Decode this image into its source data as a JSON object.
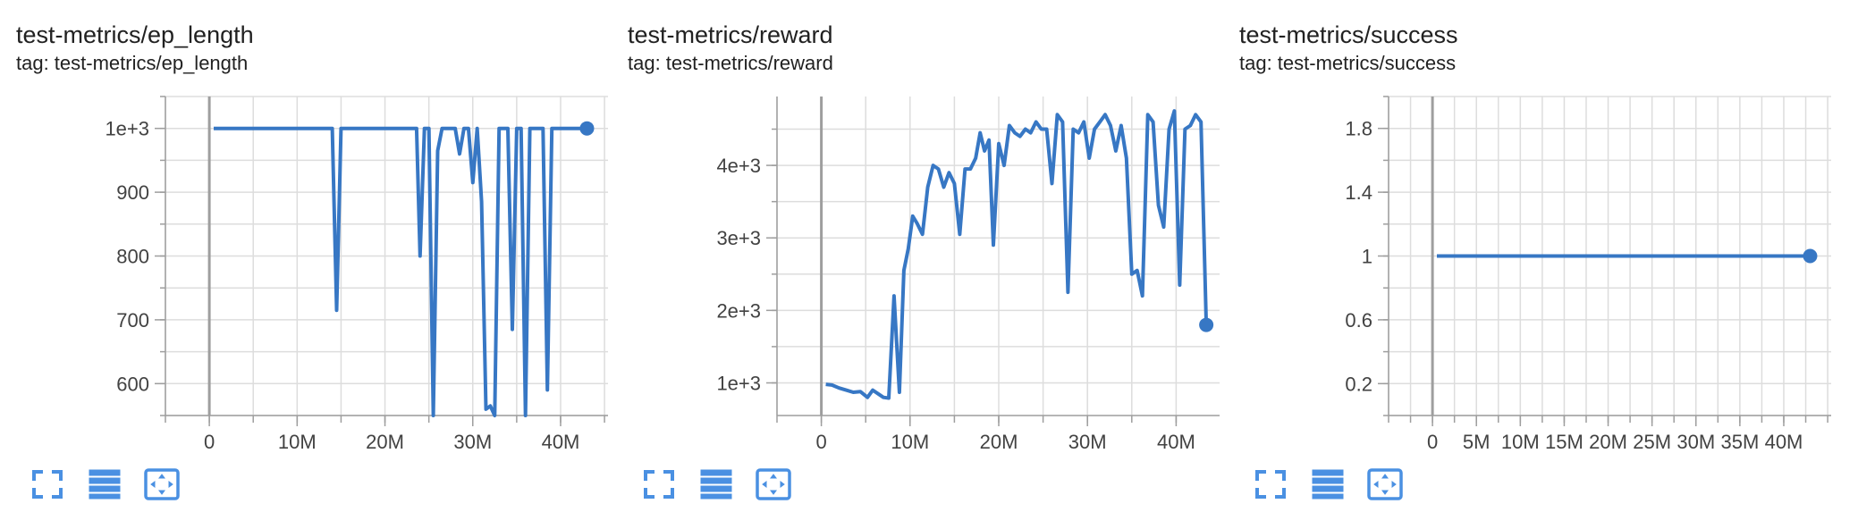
{
  "theme": {
    "line_color": "#3777c4",
    "grid_color": "#dddddd",
    "axis_color": "#9e9e9e",
    "zero_line_color": "#9e9e9e",
    "icon_color": "#4a90e2"
  },
  "toolbar": {
    "icons": [
      "fullscreen-icon",
      "data-table-icon",
      "fit-domain-icon"
    ]
  },
  "cards": [
    {
      "title": "test-metrics/ep_length",
      "tag": "tag: test-metrics/ep_length"
    },
    {
      "title": "test-metrics/reward",
      "tag": "tag: test-metrics/reward"
    },
    {
      "title": "test-metrics/success",
      "tag": "tag: test-metrics/success"
    }
  ],
  "chart_data": [
    {
      "type": "line",
      "title": "test-metrics/ep_length",
      "xlabel": "",
      "ylabel": "",
      "xlim": [
        -5000000,
        45500000
      ],
      "ylim": [
        550,
        1050
      ],
      "grid": true,
      "x_ticks": [
        0,
        10000000,
        20000000,
        30000000,
        40000000
      ],
      "x_tick_labels": [
        "0",
        "10M",
        "20M",
        "30M",
        "40M"
      ],
      "y_ticks": [
        600,
        700,
        800,
        900,
        1000
      ],
      "y_tick_labels": [
        "600",
        "700",
        "800",
        "900",
        "1e+3"
      ],
      "series": [
        {
          "x": [
            500000,
            14000000,
            14500000,
            15000000,
            23600000,
            24000000,
            24500000,
            25000000,
            25500000,
            26000000,
            26500000,
            27000000,
            28000000,
            28500000,
            29000000,
            29500000,
            30000000,
            30500000,
            31000000,
            31500000,
            32000000,
            32500000,
            33000000,
            34000000,
            34500000,
            35000000,
            35500000,
            36000000,
            36500000,
            38000000,
            38500000,
            39000000,
            43000000
          ],
          "y": [
            1000,
            1000,
            715,
            1000,
            1000,
            800,
            1000,
            1000,
            550,
            965,
            1000,
            1000,
            1000,
            960,
            1000,
            1000,
            915,
            1000,
            885,
            560,
            565,
            550,
            1000,
            1000,
            685,
            1000,
            1000,
            550,
            1000,
            1000,
            590,
            1000,
            1000
          ]
        }
      ]
    },
    {
      "type": "line",
      "title": "test-metrics/reward",
      "xlabel": "",
      "ylabel": "",
      "xlim": [
        -5000000,
        45000000
      ],
      "ylim": [
        550,
        4950
      ],
      "grid": true,
      "x_ticks": [
        0,
        10000000,
        20000000,
        30000000,
        40000000
      ],
      "x_tick_labels": [
        "0",
        "10M",
        "20M",
        "30M",
        "40M"
      ],
      "y_ticks": [
        1000,
        2000,
        3000,
        4000
      ],
      "y_tick_labels": [
        "1e+3",
        "2e+3",
        "3e+3",
        "4e+3"
      ],
      "series": [
        {
          "x": [
            500000,
            1200000,
            2000000,
            2800000,
            3600000,
            4400000,
            5200000,
            5800000,
            6400000,
            7000000,
            7600000,
            8200000,
            8800000,
            9300000,
            9800000,
            10300000,
            10800000,
            11400000,
            12000000,
            12600000,
            13200000,
            13800000,
            14400000,
            15000000,
            15600000,
            16200000,
            16800000,
            17400000,
            17900000,
            18400000,
            18900000,
            19400000,
            20000000,
            20600000,
            21200000,
            21800000,
            22400000,
            23000000,
            23600000,
            24200000,
            24800000,
            25400000,
            26000000,
            26600000,
            27200000,
            27800000,
            28400000,
            29000000,
            29600000,
            30200000,
            30800000,
            31400000,
            32000000,
            32600000,
            33200000,
            33800000,
            34400000,
            35000000,
            35600000,
            36200000,
            36800000,
            37400000,
            38000000,
            38600000,
            39200000,
            39800000,
            40400000,
            41000000,
            41600000,
            42200000,
            42800000,
            43400000
          ],
          "y": [
            980,
            970,
            930,
            900,
            870,
            880,
            800,
            900,
            850,
            800,
            790,
            2200,
            870,
            2550,
            2850,
            3300,
            3200,
            3050,
            3700,
            4000,
            3950,
            3700,
            3900,
            3750,
            3050,
            3950,
            3950,
            4100,
            4450,
            4200,
            4350,
            2900,
            4300,
            4000,
            4550,
            4450,
            4400,
            4500,
            4450,
            4600,
            4500,
            4500,
            3750,
            4700,
            4600,
            2250,
            4500,
            4450,
            4600,
            4100,
            4500,
            4600,
            4700,
            4550,
            4200,
            4550,
            4100,
            2500,
            2550,
            2200,
            4700,
            4600,
            3450,
            3150,
            4500,
            4750,
            2350,
            4500,
            4550,
            4700,
            4600,
            1800
          ]
        }
      ]
    },
    {
      "type": "line",
      "title": "test-metrics/success",
      "xlabel": "",
      "ylabel": "",
      "xlim": [
        -5000000,
        45500000
      ],
      "ylim": [
        0,
        2
      ],
      "grid": true,
      "x_ticks": [
        0,
        5000000,
        10000000,
        15000000,
        20000000,
        25000000,
        30000000,
        35000000,
        40000000
      ],
      "x_tick_labels": [
        "0",
        "5M",
        "10M",
        "15M",
        "20M",
        "25M",
        "30M",
        "35M",
        "40M"
      ],
      "y_ticks": [
        0.2,
        0.6,
        1,
        1.4,
        1.8
      ],
      "y_tick_labels": [
        "0.2",
        "0.6",
        "1",
        "1.4",
        "1.8"
      ],
      "series": [
        {
          "x": [
            500000,
            43000000
          ],
          "y": [
            1,
            1
          ]
        }
      ]
    }
  ]
}
